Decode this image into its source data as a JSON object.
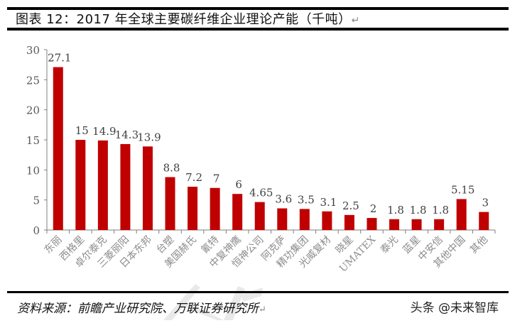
{
  "header": {
    "title": "图表 12：2017 年全球主要碳纤维企业理论产能（千吨）",
    "return_mark": "↵"
  },
  "footer": {
    "source": "资料来源：前瞻产业研究院、万联证券研究所",
    "return_mark": "↵",
    "brand": "头条 @未来智库"
  },
  "colors": {
    "bar": "#c00000",
    "axis": "#7f7f7f",
    "label": "#404040",
    "rule": "#000000"
  },
  "chart_data": {
    "type": "bar",
    "title": "2017 年全球主要碳纤维企业理论产能（千吨）",
    "xlabel": "",
    "ylabel": "",
    "ylim": [
      0,
      30
    ],
    "yticks": [
      0,
      5,
      10,
      15,
      20,
      25,
      30
    ],
    "grid": false,
    "legend": null,
    "categories": [
      "东丽",
      "西格里",
      "卓尔泰克",
      "三菱丽阳",
      "日本东邦",
      "台塑",
      "美国赫氏",
      "氰特",
      "中复神鹰",
      "恒神公司",
      "阿克萨",
      "精功集团",
      "光威复材",
      "晓星",
      "UMATEX",
      "泰光",
      "蓝星",
      "中安信",
      "其他中国",
      "其他"
    ],
    "values": [
      27.1,
      15,
      14.9,
      14.3,
      13.9,
      8.8,
      7.2,
      7,
      6,
      4.65,
      3.6,
      3.5,
      3.1,
      2.5,
      2,
      1.8,
      1.8,
      1.8,
      5.15,
      3
    ],
    "data_labels": [
      "27.1",
      "15",
      "14.9",
      "14.3",
      "13.9",
      "8.8",
      "7.2",
      "7",
      "6",
      "4.65",
      "3.6",
      "3.5",
      "3.1",
      "2.5",
      "2",
      "1.8",
      "1.8",
      "1.8",
      "5.15",
      "3"
    ],
    "series": [
      {
        "name": "理论产能（千吨）",
        "values": [
          27.1,
          15,
          14.9,
          14.3,
          13.9,
          8.8,
          7.2,
          7,
          6,
          4.65,
          3.6,
          3.5,
          3.1,
          2.5,
          2,
          1.8,
          1.8,
          1.8,
          5.15,
          3
        ]
      }
    ]
  }
}
